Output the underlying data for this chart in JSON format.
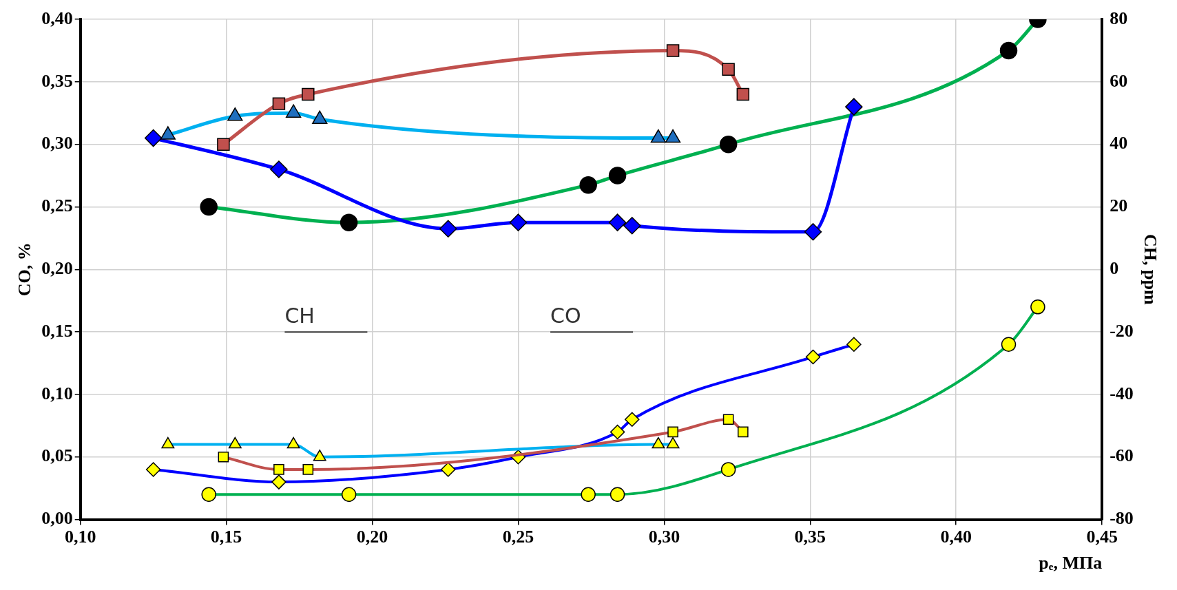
{
  "chart_data": {
    "type": "line",
    "xlabel": "pₑ, МПа",
    "ylabel": "CO, %",
    "y2label": "CH, ppm",
    "xlim": [
      0.1,
      0.45
    ],
    "xticks": [
      {
        "value": 0.1,
        "label": "0,10"
      },
      {
        "value": 0.15,
        "label": "0,15"
      },
      {
        "value": 0.2,
        "label": "0,20"
      },
      {
        "value": 0.25,
        "label": "0,25"
      },
      {
        "value": 0.3,
        "label": "0,30"
      },
      {
        "value": 0.35,
        "label": "0,35"
      },
      {
        "value": 0.4,
        "label": "0,40"
      },
      {
        "value": 0.45,
        "label": "0,45"
      }
    ],
    "ylim": [
      0,
      0.4
    ],
    "yticks": [
      {
        "value": 0,
        "label": "0,00"
      },
      {
        "value": 0.05,
        "label": "0,05"
      },
      {
        "value": 0.1,
        "label": "0,10"
      },
      {
        "value": 0.15,
        "label": "0,15"
      },
      {
        "value": 0.2,
        "label": "0,20"
      },
      {
        "value": 0.25,
        "label": "0,25"
      },
      {
        "value": 0.3,
        "label": "0,30"
      },
      {
        "value": 0.35,
        "label": "0,35"
      },
      {
        "value": 0.4,
        "label": "0,40"
      }
    ],
    "y2lim": [
      -80,
      80
    ],
    "y2ticks": [
      -80,
      -60,
      -40,
      -20,
      0,
      20,
      40,
      60,
      80
    ],
    "grid": true,
    "legend": false,
    "annotations": [
      "CH",
      "CO"
    ],
    "series": [
      {
        "type": "line",
        "axis": "y2",
        "marker": "square",
        "color": "#c0504d",
        "colors": [
          "#c0504d",
          "#c0504d",
          "#c0504d",
          "#c0504d",
          "#c0504d",
          "#c0504d"
        ],
        "x": [
          0.149,
          0.168,
          0.178,
          0.303,
          0.322,
          0.327
        ],
        "values": [
          40,
          53,
          56,
          70,
          64,
          56
        ]
      },
      {
        "type": "line",
        "axis": "y2",
        "marker": "triangle",
        "color": "#00b0f0",
        "colors": [
          "#1f6fbf",
          "#1f6fbf",
          "#1f6fbf",
          "#1f6fbf",
          "#1f6fbf",
          "#1f6fbf"
        ],
        "x": [
          0.13,
          0.153,
          0.173,
          0.182,
          0.298,
          0.303
        ],
        "values": [
          43,
          49,
          50,
          48,
          42,
          42
        ]
      },
      {
        "type": "line",
        "axis": "y2",
        "marker": "diamond",
        "color": "#0000ff",
        "colors": [
          "#0000ff",
          "#0000ff",
          "#0000ff",
          "#0000ff",
          "#0000ff",
          "#0000ff",
          "#0000ff",
          "#0000ff"
        ],
        "x": [
          0.125,
          0.168,
          0.226,
          0.25,
          0.284,
          0.289,
          0.351,
          0.365
        ],
        "values": [
          42,
          32,
          13,
          15,
          15,
          14,
          12,
          52
        ]
      },
      {
        "type": "line",
        "axis": "y2",
        "marker": "circle",
        "color": "#00b050",
        "colors": [
          "#000000",
          "#000000",
          "#000000",
          "#000000",
          "#000000",
          "#000000",
          "#000000"
        ],
        "x": [
          0.144,
          0.192,
          0.274,
          0.284,
          0.322,
          0.418,
          0.428
        ],
        "values": [
          20,
          15,
          27,
          30,
          40,
          70,
          80
        ]
      },
      {
        "type": "line",
        "axis": "y",
        "marker": "square",
        "color": "#c0504d",
        "colors": [
          "#ffff00",
          "#ffff00",
          "#ffff00",
          "#ffff00",
          "#ffff00",
          "#ffff00"
        ],
        "x": [
          0.149,
          0.168,
          0.178,
          0.303,
          0.322,
          0.327
        ],
        "values": [
          0.05,
          0.04,
          0.04,
          0.07,
          0.08,
          0.07
        ]
      },
      {
        "type": "line",
        "axis": "y",
        "marker": "triangle",
        "color": "#00b0f0",
        "colors": [
          "#ffff00",
          "#ffff00",
          "#ffff00",
          "#ffff00",
          "#ffff00",
          "#ffff00"
        ],
        "x": [
          0.13,
          0.153,
          0.173,
          0.182,
          0.298,
          0.303
        ],
        "values": [
          0.06,
          0.06,
          0.06,
          0.05,
          0.06,
          0.06
        ]
      },
      {
        "type": "line",
        "axis": "y",
        "marker": "diamond",
        "color": "#0000ff",
        "colors": [
          "#ffff00",
          "#ffff00",
          "#ffff00",
          "#ffff00",
          "#ffff00",
          "#ffff00",
          "#ffff00",
          "#ffff00"
        ],
        "x": [
          0.125,
          0.168,
          0.226,
          0.25,
          0.284,
          0.289,
          0.351,
          0.365
        ],
        "values": [
          0.04,
          0.03,
          0.04,
          0.05,
          0.07,
          0.08,
          0.13,
          0.14
        ]
      },
      {
        "type": "line",
        "axis": "y",
        "marker": "circle",
        "color": "#00b050",
        "colors": [
          "#ffff00",
          "#ffff00",
          "#ffff00",
          "#ffff00",
          "#ffff00",
          "#ffff00",
          "#ffff00"
        ],
        "x": [
          0.144,
          0.192,
          0.274,
          0.284,
          0.322,
          0.418,
          0.428
        ],
        "values": [
          0.02,
          0.02,
          0.02,
          0.02,
          0.04,
          0.14,
          0.17
        ]
      }
    ]
  }
}
